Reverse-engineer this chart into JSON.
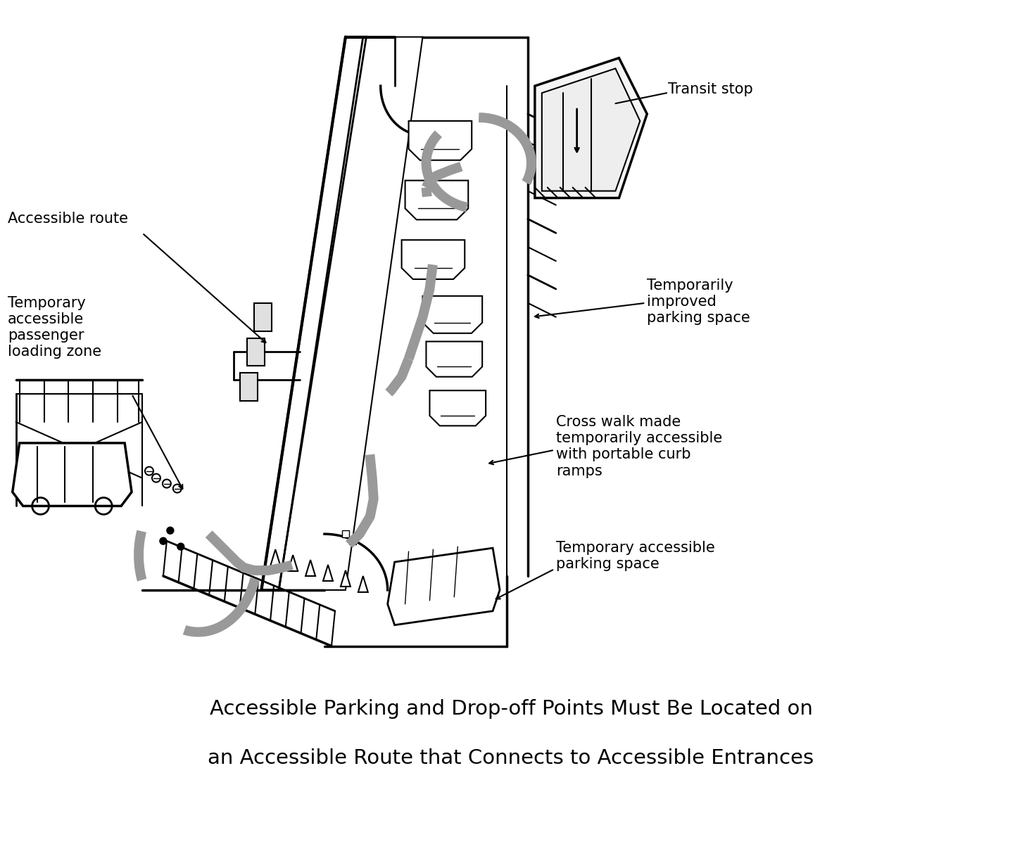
{
  "title_line1": "Accessible Parking and Drop-off Points Must Be Located on",
  "title_line2": "an Accessible Route that Connects to Accessible Entrances",
  "title_fontsize": 21,
  "title_fontweight": "normal",
  "bg_color": "#ffffff",
  "text_color": "#000000",
  "route_color": "#999999",
  "route_lw": 10,
  "route_dash": [
    10,
    7
  ],
  "labels": {
    "accessible_route": "Accessible route",
    "temp_loading": "Temporary\naccessible\npassenger\nloading zone",
    "transit_stop": "Transit stop",
    "temp_improved_parking": "Temporarily\nimproved\nparking space",
    "crosswalk": "Cross walk made\ntemporarily accessible\nwith portable curb\nramps",
    "temp_parking": "Temporary accessible\nparking space"
  },
  "figsize": [
    14.52,
    12.0
  ],
  "dpi": 100
}
